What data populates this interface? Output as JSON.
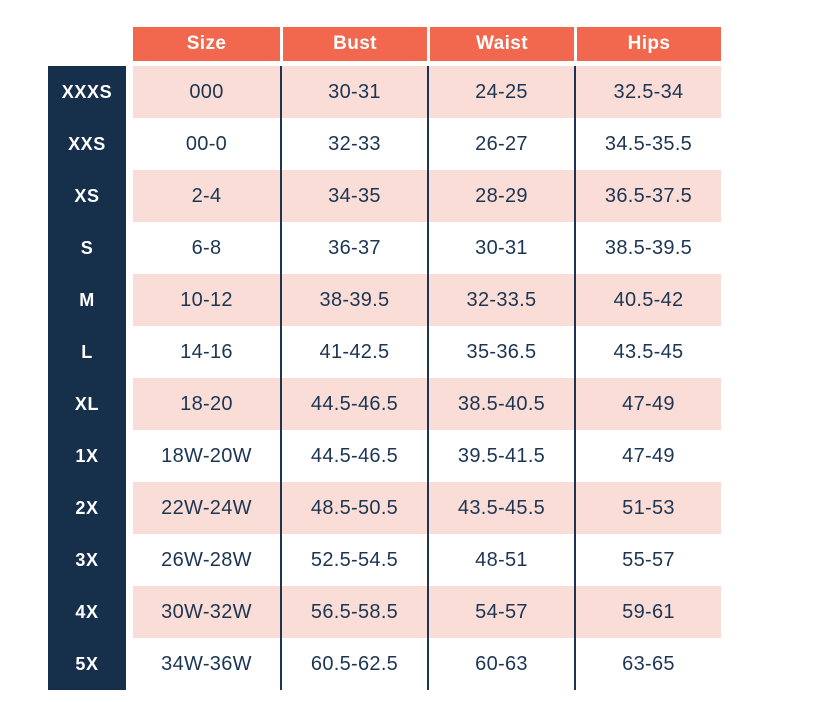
{
  "colors": {
    "header_bg": "#F2684E",
    "header_text": "#FFFFFF",
    "label_column_bg": "#16304C",
    "label_text": "#FFFFFF",
    "row_pink_bg": "#FADDD6",
    "row_white_bg": "#FFFFFF",
    "cell_text": "#1C3553",
    "column_divider": "#1C3553"
  },
  "chart_data": {
    "type": "table",
    "column_headers": [
      "Size",
      "Bust",
      "Waist",
      "Hips"
    ],
    "row_labels": [
      "XXXS",
      "XXS",
      "XS",
      "S",
      "M",
      "L",
      "XL",
      "1X",
      "2X",
      "3X",
      "4X",
      "5X"
    ],
    "rows": [
      [
        "000",
        "30-31",
        "24-25",
        "32.5-34"
      ],
      [
        "00-0",
        "32-33",
        "26-27",
        "34.5-35.5"
      ],
      [
        "2-4",
        "34-35",
        "28-29",
        "36.5-37.5"
      ],
      [
        "6-8",
        "36-37",
        "30-31",
        "38.5-39.5"
      ],
      [
        "10-12",
        "38-39.5",
        "32-33.5",
        "40.5-42"
      ],
      [
        "14-16",
        "41-42.5",
        "35-36.5",
        "43.5-45"
      ],
      [
        "18-20",
        "44.5-46.5",
        "38.5-40.5",
        "47-49"
      ],
      [
        "18W-20W",
        "44.5-46.5",
        "39.5-41.5",
        "47-49"
      ],
      [
        "22W-24W",
        "48.5-50.5",
        "43.5-45.5",
        "51-53"
      ],
      [
        "26W-28W",
        "52.5-54.5",
        "48-51",
        "55-57"
      ],
      [
        "30W-32W",
        "56.5-58.5",
        "54-57",
        "59-61"
      ],
      [
        "34W-36W",
        "60.5-62.5",
        "60-63",
        "63-65"
      ]
    ]
  }
}
